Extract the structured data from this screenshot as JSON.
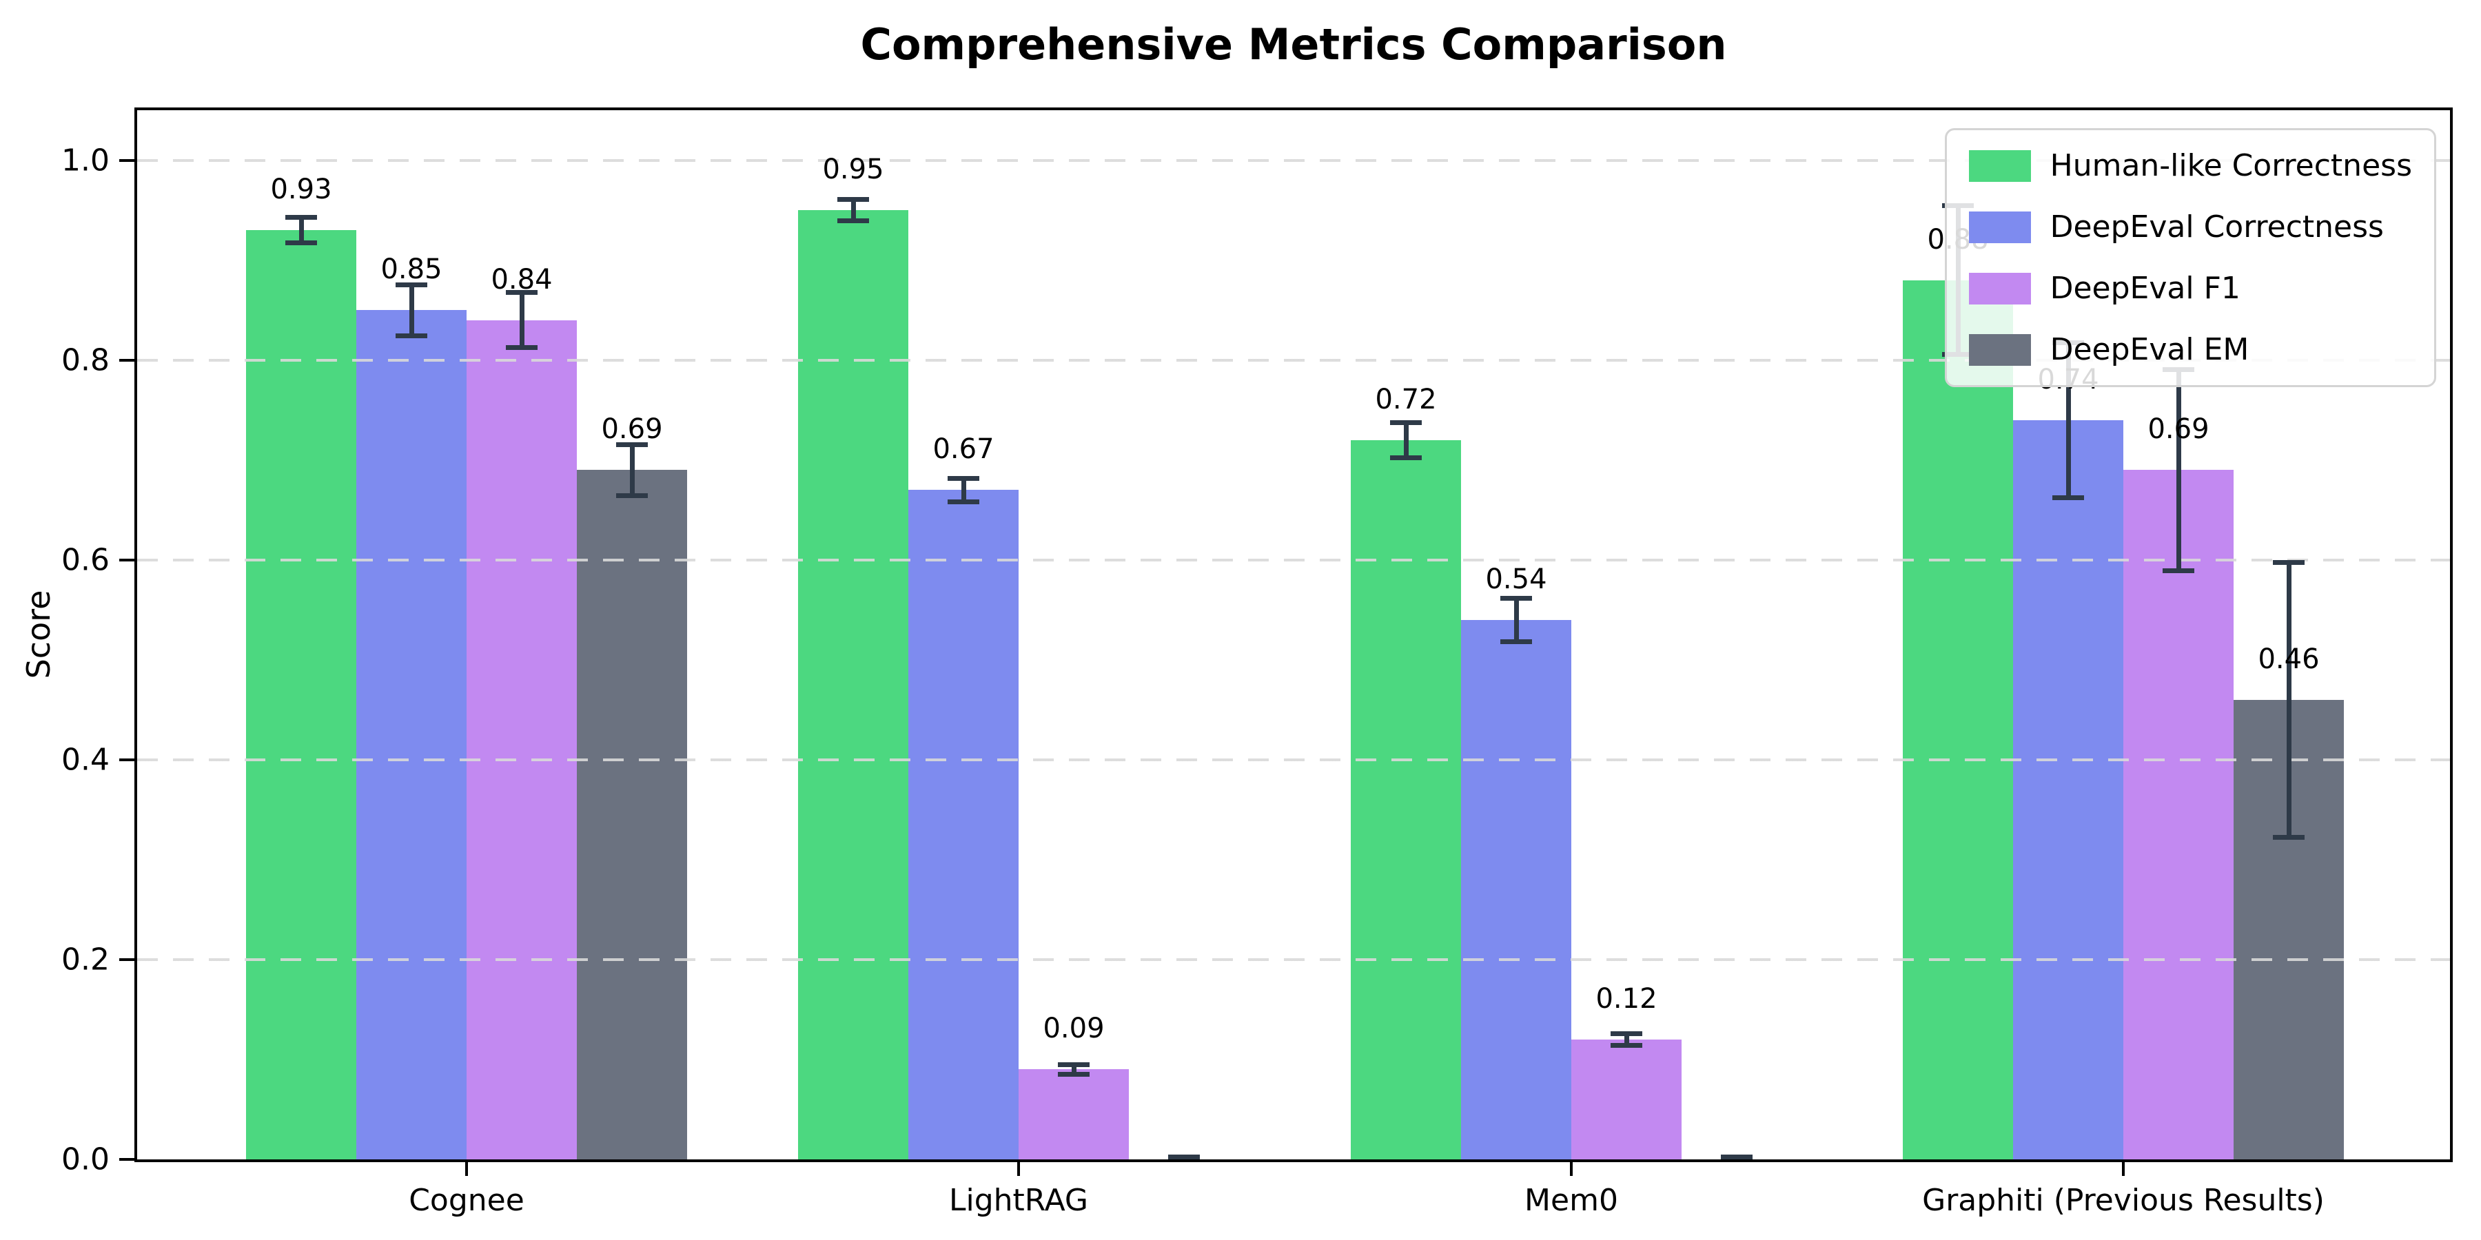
{
  "chart_data": {
    "type": "bar",
    "title": "Comprehensive Metrics Comparison",
    "xlabel": "",
    "ylabel": "Score",
    "categories": [
      "Cognee",
      "LightRAG",
      "Mem0",
      "Graphiti (Previous Results)"
    ],
    "series": [
      {
        "name": "Human-like Correctness",
        "color": "#4cd880",
        "values": [
          0.93,
          0.95,
          0.72,
          0.88
        ],
        "errors": [
          0.015,
          0.013,
          0.02,
          0.077
        ],
        "value_labels": [
          "0.93",
          "0.95",
          "0.72",
          "0.88"
        ]
      },
      {
        "name": "DeepEval Correctness",
        "color": "#7e8bef",
        "values": [
          0.85,
          0.67,
          0.54,
          0.74
        ],
        "errors": [
          0.028,
          0.014,
          0.024,
          0.08
        ],
        "value_labels": [
          "0.85",
          "0.67",
          "0.54",
          "0.74"
        ]
      },
      {
        "name": "DeepEval F1",
        "color": "#c289f1",
        "values": [
          0.84,
          0.09,
          0.12,
          0.69
        ],
        "errors": [
          0.03,
          0.007,
          0.008,
          0.103
        ],
        "value_labels": [
          "0.84",
          "0.09",
          "0.12",
          "0.69"
        ]
      },
      {
        "name": "DeepEval EM",
        "color": "#6b7280",
        "values": [
          0.69,
          0.0,
          0.0,
          0.46
        ],
        "errors": [
          0.028,
          0.005,
          0.005,
          0.14
        ],
        "value_labels": [
          "0.69",
          "",
          "",
          "0.46"
        ]
      }
    ],
    "yticks": [
      0.0,
      0.2,
      0.4,
      0.6,
      0.8,
      1.0
    ],
    "ytick_labels": [
      "0.0",
      "0.2",
      "0.4",
      "0.6",
      "0.8",
      "1.0"
    ],
    "ylim": [
      0,
      1.05
    ],
    "grid": "dashed-horizontal",
    "legend_position": "upper-right",
    "colors": {
      "error_bar": "#2e3a48",
      "grid": "#d9d9d9",
      "spine": "#000000",
      "legend_border": "#d4d4d4"
    }
  }
}
